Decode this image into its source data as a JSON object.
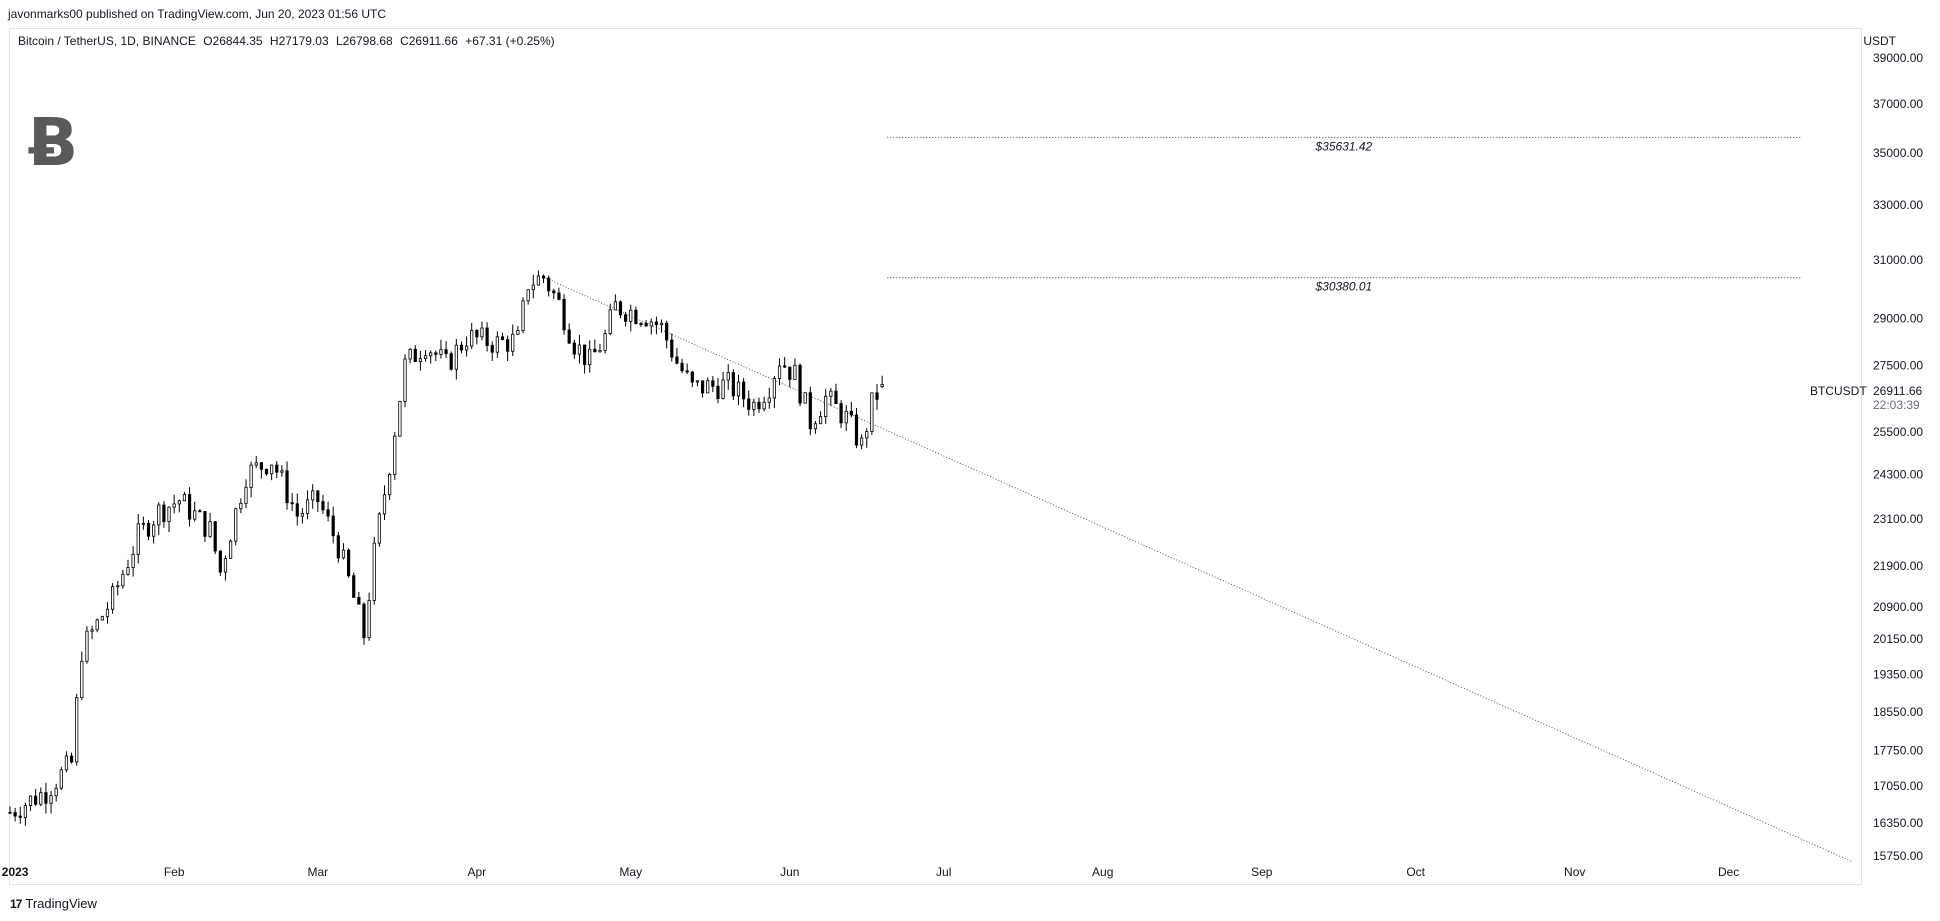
{
  "header": {
    "publisher_line": "javonmarks00 published on TradingView.com, Jun 20, 2023 01:56 UTC"
  },
  "legend": {
    "symbol": "Bitcoin / TetherUS, 1D, BINANCE",
    "open": "O26844.35",
    "high": "H27179.03",
    "low": "L26798.68",
    "close": "C26911.66",
    "change": "+67.31 (+0.25%)"
  },
  "currency": "USDT",
  "price_label": {
    "symbol": "BTCUSDT",
    "price": "26911.66",
    "countdown": "22:03:39"
  },
  "footer": {
    "brand": "TradingView",
    "brand_mark": "17"
  },
  "icons": {
    "logo": "bitcoin-icon",
    "brand": "tradingview-logo-icon"
  },
  "colors": {
    "candle_up": "#ffffff",
    "candle_down": "#000000",
    "outline": "#000000",
    "dotted_line": "#555555"
  },
  "chart_data": {
    "type": "candlestick",
    "title": "Bitcoin / TetherUS, 1D, BINANCE",
    "y_axis": {
      "ticks": [
        39000,
        37000,
        35000,
        33000,
        31000,
        29000,
        27500,
        25500,
        24300,
        23100,
        21900,
        20900,
        20150,
        19350,
        18550,
        17750,
        17050,
        16350,
        15750
      ],
      "tick_labels": [
        "39000.00",
        "37000.00",
        "35000.00",
        "33000.00",
        "31000.00",
        "29000.00",
        "27500.00",
        "25500.00",
        "24300.00",
        "23100.00",
        "21900.00",
        "20900.00",
        "20150.00",
        "19350.00",
        "18550.00",
        "17750.00",
        "17050.00",
        "16350.00",
        "15750.00"
      ],
      "scale": "log"
    },
    "x_axis": {
      "ticks": [
        "2023-01-01",
        "2023-02-01",
        "2023-03-01",
        "2023-04-01",
        "2023-05-01",
        "2023-06-01",
        "2023-07-01",
        "2023-08-01",
        "2023-09-01",
        "2023-10-01",
        "2023-11-01",
        "2023-12-01"
      ],
      "tick_labels": [
        "2023",
        "Feb",
        "Mar",
        "Apr",
        "May",
        "Jun",
        "Jul",
        "Aug",
        "Sep",
        "Oct",
        "Nov",
        "Dec"
      ],
      "range": [
        "2022-12-31",
        "2023-12-27"
      ]
    },
    "horizontal_levels": [
      {
        "value": 35631.42,
        "label": "$35631.42",
        "from": "2023-06-20",
        "to": "2023-12-15"
      },
      {
        "value": 30380.01,
        "label": "$30380.01",
        "from": "2023-06-20",
        "to": "2023-12-15"
      }
    ],
    "trendline": {
      "from": {
        "date": "2023-04-14",
        "value": 30400
      },
      "to": {
        "date": "2023-12-25",
        "value": 15650
      },
      "style": "dotted"
    },
    "waypoints": [
      [
        "2022-12-31",
        16550
      ],
      [
        "2023-01-07",
        16950
      ],
      [
        "2023-01-12",
        17500
      ],
      [
        "2023-01-14",
        19900
      ],
      [
        "2023-01-20",
        21100
      ],
      [
        "2023-01-25",
        22650
      ],
      [
        "2023-01-29",
        23300
      ],
      [
        "2023-02-02",
        23600
      ],
      [
        "2023-02-08",
        22800
      ],
      [
        "2023-02-10",
        21750
      ],
      [
        "2023-02-15",
        24300
      ],
      [
        "2023-02-20",
        24700
      ],
      [
        "2023-02-25",
        23200
      ],
      [
        "2023-03-01",
        23600
      ],
      [
        "2023-03-05",
        22400
      ],
      [
        "2023-03-10",
        20250
      ],
      [
        "2023-03-12",
        22200
      ],
      [
        "2023-03-15",
        24600
      ],
      [
        "2023-03-18",
        27500
      ],
      [
        "2023-03-22",
        28200
      ],
      [
        "2023-03-26",
        27500
      ],
      [
        "2023-03-30",
        28400
      ],
      [
        "2023-04-05",
        28200
      ],
      [
        "2023-04-09",
        28300
      ],
      [
        "2023-04-11",
        30200
      ],
      [
        "2023-04-14",
        30400
      ],
      [
        "2023-04-17",
        29500
      ],
      [
        "2023-04-20",
        28200
      ],
      [
        "2023-04-23",
        27600
      ],
      [
        "2023-04-26",
        28400
      ],
      [
        "2023-04-28",
        29400
      ],
      [
        "2023-05-04",
        29100
      ],
      [
        "2023-05-07",
        28700
      ],
      [
        "2023-05-10",
        27600
      ],
      [
        "2023-05-13",
        26800
      ],
      [
        "2023-05-20",
        26900
      ],
      [
        "2023-05-25",
        26300
      ],
      [
        "2023-05-28",
        26900
      ],
      [
        "2023-05-30",
        27700
      ],
      [
        "2023-06-02",
        27200
      ],
      [
        "2023-06-05",
        25800
      ],
      [
        "2023-06-08",
        26500
      ],
      [
        "2023-06-12",
        25900
      ],
      [
        "2023-06-15",
        25100
      ],
      [
        "2023-06-17",
        26300
      ],
      [
        "2023-06-19",
        26911.66
      ]
    ]
  }
}
